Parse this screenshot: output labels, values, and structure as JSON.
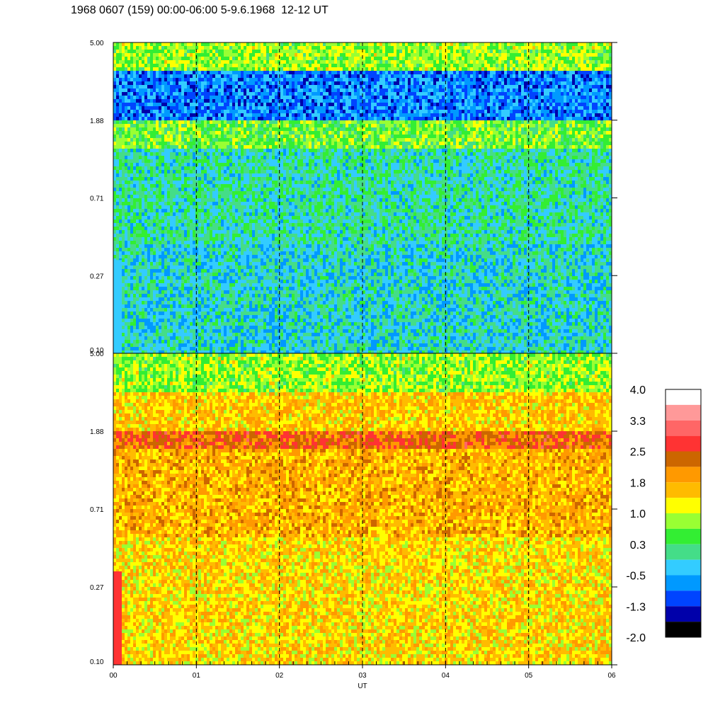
{
  "title": "1968 0607 (159) 00:00-06:00 5-9.6.1968  12-12 UT",
  "chart_data": {
    "type": "heatmap",
    "title": "1968 0607 (159) 00:00-06:00 5-9.6.1968  12-12 UT",
    "xlabel": "UT",
    "x_ticks": [
      "00",
      "01",
      "02",
      "03",
      "04",
      "05",
      "06"
    ],
    "xlim": [
      0,
      6
    ],
    "panels": [
      {
        "name": "upper",
        "y_ticks": [
          "5.00",
          "1.88",
          "0.71",
          "0.27",
          "0.10"
        ],
        "ylim": [
          0.1,
          5.0
        ],
        "yscale": "log",
        "dominant_range": [
          -1.3,
          1.0
        ],
        "description_bands": [
          {
            "y_from": 3.5,
            "y_to": 5.0,
            "value": 0.8
          },
          {
            "y_from": 1.9,
            "y_to": 3.5,
            "value": -0.8
          },
          {
            "y_from": 1.3,
            "y_to": 1.9,
            "value": 0.6
          },
          {
            "y_from": 0.4,
            "y_to": 1.3,
            "value": 0.0
          },
          {
            "y_from": 0.1,
            "y_to": 0.4,
            "value": -0.2
          }
        ]
      },
      {
        "name": "lower",
        "y_ticks": [
          "5.00",
          "1.88",
          "0.71",
          "0.27",
          "0.10"
        ],
        "ylim": [
          0.1,
          5.0
        ],
        "yscale": "log",
        "dominant_range": [
          1.0,
          2.5
        ],
        "description_bands": [
          {
            "y_from": 3.0,
            "y_to": 5.0,
            "value": 0.8
          },
          {
            "y_from": 1.88,
            "y_to": 3.0,
            "value": 1.5
          },
          {
            "y_from": 1.5,
            "y_to": 1.88,
            "value": 2.3
          },
          {
            "y_from": 0.5,
            "y_to": 1.5,
            "value": 1.7
          },
          {
            "y_from": 0.1,
            "y_to": 0.5,
            "value": 1.4
          }
        ]
      }
    ],
    "dashed_vlines": [
      1,
      2,
      3,
      4,
      5
    ],
    "colorbar": {
      "labels": [
        "4.0",
        "3.3",
        "2.5",
        "1.8",
        "1.0",
        "0.3",
        "-0.5",
        "-1.3",
        "-2.0"
      ],
      "colors": [
        "#ffffff",
        "#ff9999",
        "#ff6666",
        "#ff3333",
        "#cc6600",
        "#ff9900",
        "#ffbb00",
        "#ffff00",
        "#99ff33",
        "#33ee33",
        "#44dd88",
        "#33ccff",
        "#0099ff",
        "#0044ff",
        "#0000aa",
        "#000000"
      ]
    }
  }
}
